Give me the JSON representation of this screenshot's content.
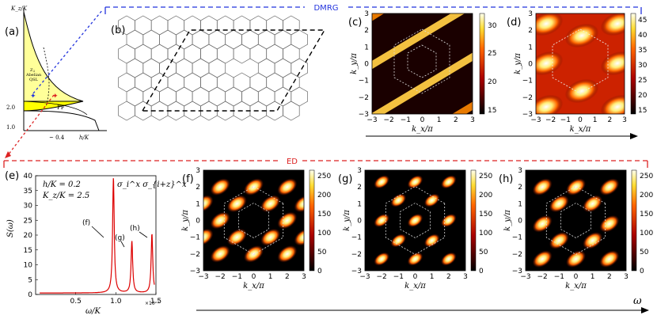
{
  "banners": {
    "dmrg": "DMRG",
    "ed": "ED",
    "dmrg_color": "#2233dd",
    "ed_color": "#dd2222"
  },
  "panel_labels": {
    "a": "(a)",
    "b": "(b)",
    "c": "(c)",
    "d": "(d)",
    "e": "(e)",
    "f": "(f)",
    "g": "(g)",
    "h": "(h)"
  },
  "phase_diagram": {
    "ylabel": "K_z/K",
    "xlabel": "h/K",
    "ytick_top": "2.0",
    "ytick_bottom": "1.0",
    "xtick": "~ 0.4",
    "region_qsl_1": "Z",
    "region_qsl_1_sub": "2",
    "region_qsl_2": "Abelian",
    "region_qsl_3": "QSL",
    "region_pf": "PF",
    "region_color": "#ffff88",
    "pf_color": "#ffee00"
  },
  "lattice": {
    "description_hidden": ""
  },
  "spectrum": {
    "ylabel": "S(ω)",
    "xlabel": "ω/K",
    "params_line1": "h/K = 0.2",
    "params_line2": "K_z/K = 2.5",
    "operator": "σ_i^x σ_{i+z}^x",
    "scale": "×10⁻²",
    "peak_f": "(f)",
    "peak_g": "(g)",
    "peak_h": "(h)",
    "line_color": "#dd0000"
  },
  "colormaps": {
    "c": {
      "ticks": [
        "30",
        "25",
        "20",
        "15"
      ]
    },
    "d": {
      "ticks": [
        "45",
        "40",
        "35",
        "30",
        "25",
        "20",
        "15"
      ]
    },
    "f": {
      "ticks": [
        "250",
        "200",
        "150",
        "100",
        "50",
        "0"
      ]
    },
    "g": {
      "ticks": [
        "250",
        "200",
        "150",
        "100",
        "50",
        "0"
      ]
    },
    "h": {
      "ticks": [
        "250",
        "200",
        "150",
        "100",
        "50",
        "0"
      ]
    }
  },
  "kspace": {
    "xlabel": "k_x/π",
    "ylabel": "k_y/π",
    "ticks": [
      "−3",
      "−2",
      "−1",
      "0",
      "1",
      "2",
      "3"
    ]
  },
  "omega_arrow": "ω",
  "chart_data": [
    {
      "type": "line",
      "title": "",
      "xlabel": "ω/K",
      "ylabel": "S(ω)",
      "xlim": [
        0,
        0.015
      ],
      "ylim": [
        0,
        40
      ],
      "x_ticks": [
        "0.5",
        "1.0",
        "1.5"
      ],
      "y_ticks": [
        "0",
        "5",
        "10",
        "15",
        "20",
        "25",
        "30",
        "35",
        "40"
      ],
      "peaks": [
        {
          "label": "(f)",
          "omega": 0.0097,
          "height": 39
        },
        {
          "label": "(g)",
          "omega": 0.012,
          "height": 17.5
        },
        {
          "label": "(h)",
          "omega": 0.0145,
          "height": 20
        }
      ]
    }
  ]
}
